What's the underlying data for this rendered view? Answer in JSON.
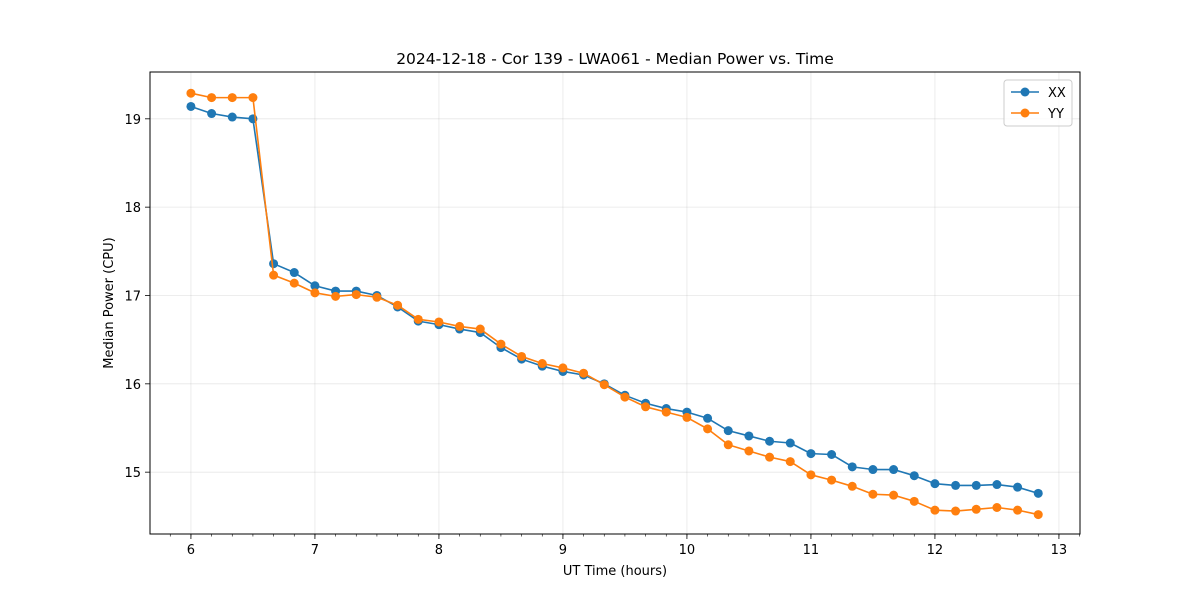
{
  "chart_data": {
    "type": "line",
    "title": "2024-12-18 - Cor 139 - LWA061 - Median Power vs. Time",
    "xlabel": "UT Time (hours)",
    "ylabel": "Median Power (CPU)",
    "xlim": [
      5.67,
      13.17
    ],
    "ylim": [
      14.3,
      19.53
    ],
    "xticks": [
      6,
      7,
      8,
      9,
      10,
      11,
      12,
      13
    ],
    "yticks": [
      15,
      16,
      17,
      18,
      19
    ],
    "grid": true,
    "legend_position": "top-right",
    "x": [
      6.0,
      6.1667,
      6.3333,
      6.5,
      6.6667,
      6.8333,
      7.0,
      7.1667,
      7.3333,
      7.5,
      7.6667,
      7.8333,
      8.0,
      8.1667,
      8.3333,
      8.5,
      8.6667,
      8.8333,
      9.0,
      9.1667,
      9.3333,
      9.5,
      9.6667,
      9.8333,
      10.0,
      10.1667,
      10.3333,
      10.5,
      10.6667,
      10.8333,
      11.0,
      11.1667,
      11.3333,
      11.5,
      11.6667,
      11.8333,
      12.0,
      12.1667,
      12.3333,
      12.5,
      12.6667,
      12.8333
    ],
    "series": [
      {
        "name": "XX",
        "color": "#1f77b4",
        "values": [
          19.14,
          19.06,
          19.02,
          19.0,
          17.36,
          17.26,
          17.11,
          17.05,
          17.05,
          17.0,
          16.87,
          16.71,
          16.67,
          16.62,
          16.58,
          16.41,
          16.28,
          16.2,
          16.14,
          16.1,
          16.0,
          15.87,
          15.78,
          15.72,
          15.68,
          15.61,
          15.47,
          15.41,
          15.35,
          15.33,
          15.21,
          15.2,
          15.06,
          15.03,
          15.03,
          14.96,
          14.87,
          14.85,
          14.85,
          14.86,
          14.83,
          14.76
        ]
      },
      {
        "name": "YY",
        "color": "#ff7f0e",
        "values": [
          19.29,
          19.24,
          19.24,
          19.24,
          17.23,
          17.14,
          17.03,
          16.99,
          17.01,
          16.98,
          16.89,
          16.73,
          16.7,
          16.65,
          16.62,
          16.45,
          16.31,
          16.23,
          16.18,
          16.12,
          15.99,
          15.85,
          15.74,
          15.68,
          15.62,
          15.49,
          15.31,
          15.24,
          15.17,
          15.12,
          14.97,
          14.91,
          14.84,
          14.75,
          14.74,
          14.67,
          14.57,
          14.56,
          14.58,
          14.6,
          14.57,
          14.52
        ]
      }
    ]
  }
}
